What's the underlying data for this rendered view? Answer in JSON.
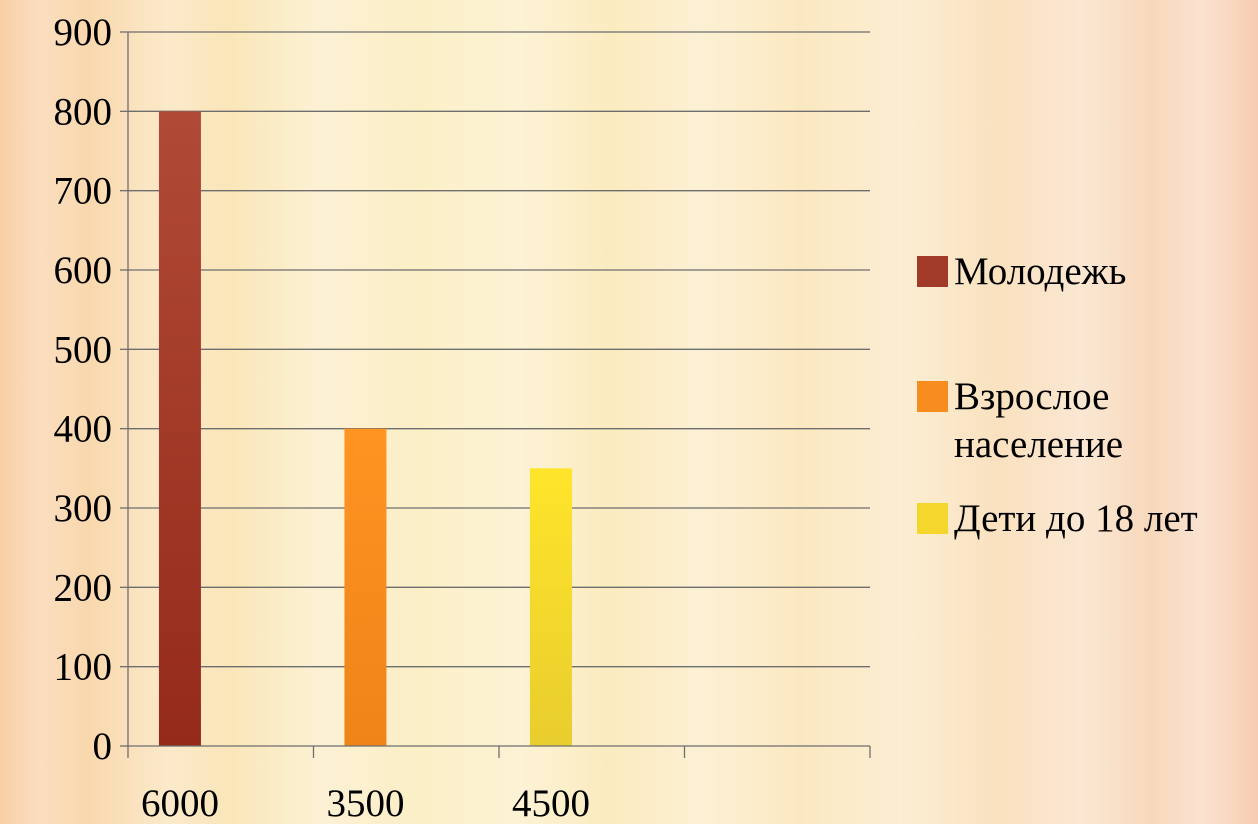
{
  "chart_data": {
    "type": "bar",
    "categories": [
      "6000",
      "3500",
      "4500"
    ],
    "series": [
      {
        "name": "Молодежь",
        "color": "#a23a2a",
        "values": [
          800,
          null,
          null
        ]
      },
      {
        "name": "Взрослое население",
        "color": "#f78d1e",
        "values": [
          null,
          400,
          null
        ]
      },
      {
        "name": "Дети до 18 лет",
        "color": "#f4d62c",
        "values": [
          null,
          null,
          350
        ]
      }
    ],
    "title": "",
    "xlabel": "",
    "ylabel": "",
    "ylim": [
      0,
      900
    ],
    "yticks": [
      0,
      100,
      200,
      300,
      400,
      500,
      600,
      700,
      800,
      900
    ],
    "grid": true,
    "legend_position": "right"
  }
}
